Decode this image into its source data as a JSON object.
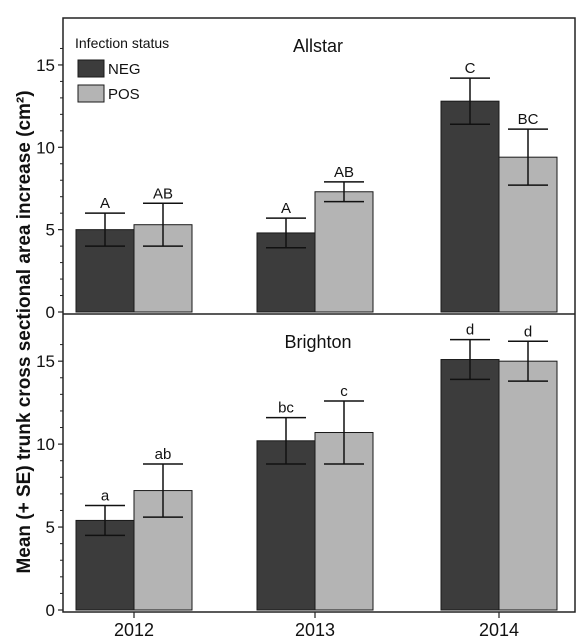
{
  "chart_data": {
    "type": "bar",
    "ylabel": "Mean (+ SE) trunk cross sectional area increase (cm²)",
    "legend": {
      "title": "Infection status",
      "position": "top-left"
    },
    "categories": [
      "2012",
      "2013",
      "2014"
    ],
    "colors": {
      "NEG": "#3c3c3c",
      "POS": "#b4b4b4"
    },
    "panels": [
      {
        "title": "Allstar",
        "ylim": [
          0,
          17
        ],
        "yticks": [
          0,
          5,
          10,
          15
        ],
        "series": [
          {
            "name": "NEG",
            "values": [
              5.0,
              4.8,
              12.8
            ],
            "se": [
              1.0,
              0.9,
              1.4
            ],
            "letters": [
              "A",
              "A",
              "C"
            ]
          },
          {
            "name": "POS",
            "values": [
              5.3,
              7.3,
              9.4
            ],
            "se": [
              1.3,
              0.6,
              1.7
            ],
            "letters": [
              "AB",
              "AB",
              "BC"
            ]
          }
        ]
      },
      {
        "title": "Brighton",
        "ylim": [
          0,
          17
        ],
        "yticks": [
          0,
          5,
          10,
          15
        ],
        "series": [
          {
            "name": "NEG",
            "values": [
              5.4,
              10.2,
              15.1
            ],
            "se": [
              0.9,
              1.4,
              1.2
            ],
            "letters": [
              "a",
              "bc",
              "d"
            ]
          },
          {
            "name": "POS",
            "values": [
              7.2,
              10.7,
              15.0
            ],
            "se": [
              1.6,
              1.9,
              1.2
            ],
            "letters": [
              "ab",
              "c",
              "d"
            ]
          }
        ]
      }
    ]
  }
}
